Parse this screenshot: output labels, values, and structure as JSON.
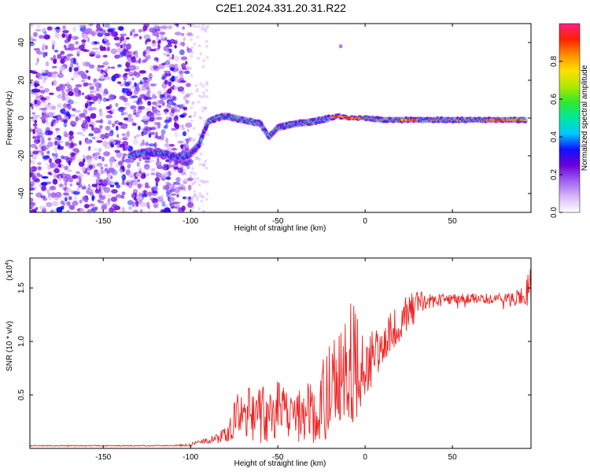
{
  "chart_data": [
    {
      "type": "heatmap",
      "title": "C2E1.2024.331.20.31.R22",
      "xlabel": "Height of straight line (km)",
      "ylabel": "Frequency (Hz)",
      "xlim": [
        -192,
        95
      ],
      "ylim": [
        -50,
        50
      ],
      "xticks": [
        -150,
        -100,
        -50,
        0,
        50
      ],
      "xtick_labels": [
        "-150",
        "-100",
        "-50",
        "0",
        "50"
      ],
      "yticks": [
        -40,
        -20,
        0,
        20,
        40
      ],
      "ytick_labels": [
        "-40",
        "-20",
        "0",
        "20",
        "40"
      ],
      "colorbar": {
        "label": "Normalized spectral amplitude",
        "range": [
          0,
          1
        ],
        "ticks": [
          0.0,
          0.2,
          0.4,
          0.6,
          0.8
        ],
        "tick_labels": [
          "0.0",
          "0.2",
          "0.4",
          "0.6",
          "0.8"
        ],
        "colors": [
          "#ffffff",
          "#d8b8f8",
          "#a060f0",
          "#6a00d8",
          "#1010ff",
          "#00c8ff",
          "#00e8a0",
          "#30e830",
          "#b0e800",
          "#ffe000",
          "#ff9000",
          "#ff2000",
          "#ff2080"
        ]
      },
      "ridge": {
        "x": [
          -135,
          -125,
          -115,
          -108,
          -100,
          -95,
          -90,
          -85,
          -80,
          -70,
          -60,
          -55,
          -50,
          -45,
          -40,
          -30,
          -20,
          -15,
          -10,
          0,
          10,
          30,
          50,
          70,
          92
        ],
        "y": [
          -20,
          -18,
          -19,
          -21,
          -19,
          -14,
          -2,
          0,
          1,
          -1,
          -3,
          -10,
          -5,
          -4,
          -3,
          -2,
          0,
          1,
          0,
          0,
          -1,
          -1,
          -1,
          -1,
          -1
        ]
      },
      "grid": false
    },
    {
      "type": "line",
      "title": "",
      "xlabel": "Height of straight line (km)",
      "ylabel": "SNR (10 * v/v)",
      "y_multiplier_label": "(x10",
      "y_multiplier_exp": "4",
      "y_multiplier_close": ")",
      "xlim": [
        -192,
        95
      ],
      "ylim": [
        0,
        1.78
      ],
      "xticks": [
        -150,
        -100,
        -50,
        0,
        50
      ],
      "xtick_labels": [
        "-150",
        "-100",
        "-50",
        "0",
        "50"
      ],
      "yticks": [
        0.5,
        1.0,
        1.5
      ],
      "ytick_labels": [
        "0.5",
        "1.0",
        "1.5"
      ],
      "series_color": "#ee2222",
      "envelope": {
        "x": [
          -192,
          -150,
          -110,
          -100,
          -90,
          -80,
          -75,
          -70,
          -60,
          -50,
          -45,
          -40,
          -35,
          -30,
          -25,
          -20,
          -15,
          -10,
          -5,
          0,
          5,
          10,
          15,
          20,
          25,
          30,
          35,
          40,
          45,
          50,
          60,
          70,
          80,
          90,
          95
        ],
        "low": [
          0.02,
          0.02,
          0.02,
          0.02,
          0.05,
          0.05,
          0.1,
          0.1,
          0.05,
          0.05,
          0.05,
          0.05,
          0.02,
          0.05,
          0.05,
          0.1,
          0.2,
          0.3,
          0.2,
          0.5,
          0.6,
          0.8,
          0.9,
          1.0,
          1.1,
          1.2,
          1.3,
          1.3,
          1.35,
          1.35,
          1.35,
          1.35,
          1.35,
          1.35,
          1.3
        ],
        "high": [
          0.03,
          0.03,
          0.03,
          0.05,
          0.1,
          0.2,
          0.5,
          0.55,
          0.6,
          0.65,
          0.65,
          0.7,
          0.6,
          0.7,
          0.8,
          1.0,
          1.1,
          1.3,
          1.5,
          1.1,
          1.1,
          1.2,
          1.3,
          1.4,
          1.45,
          1.5,
          1.45,
          1.45,
          1.45,
          1.45,
          1.45,
          1.45,
          1.45,
          1.5,
          1.7
        ]
      },
      "grid": false
    }
  ]
}
